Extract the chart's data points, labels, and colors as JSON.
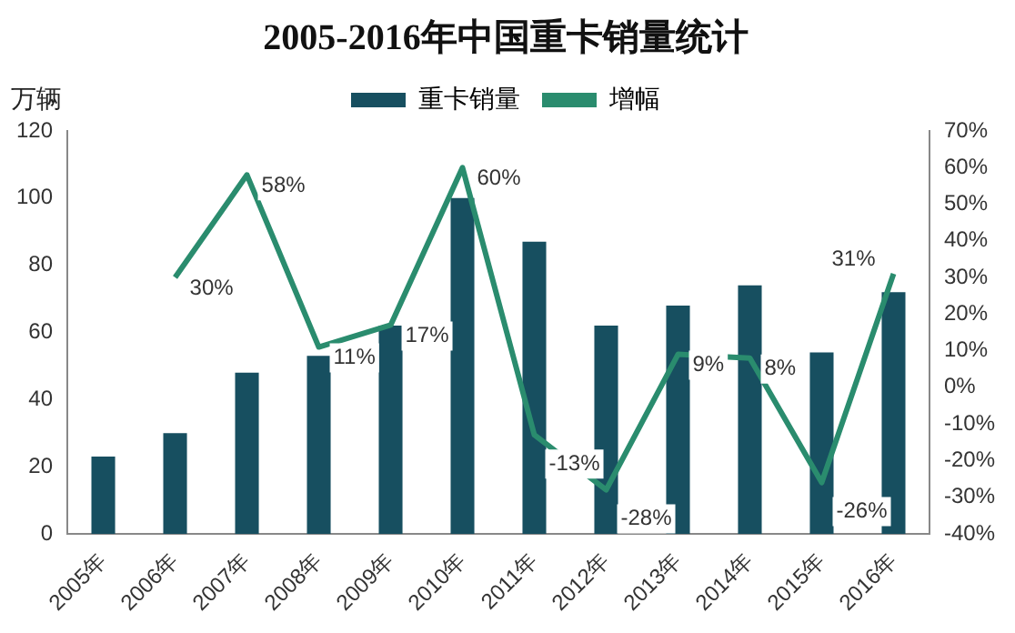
{
  "chart_data": {
    "type": "bar",
    "title": "2005-2016年中国重卡销量统计",
    "ylabel": "万辆",
    "categories": [
      "2005年",
      "2006年",
      "2007年",
      "2008年",
      "2009年",
      "2010年",
      "2011年",
      "2012年",
      "2013年",
      "2014年",
      "2015年",
      "2016年"
    ],
    "series": [
      {
        "name": "重卡销量",
        "color": "#174f60",
        "values": [
          23,
          30,
          48,
          53,
          62,
          100,
          87,
          62,
          68,
          74,
          54,
          72
        ]
      },
      {
        "type": "line",
        "name": "增幅",
        "color": "#2a8c6e",
        "axis": "y2",
        "values": [
          null,
          30,
          58,
          11,
          17,
          60,
          -13,
          -28,
          9,
          8,
          -26,
          31
        ],
        "value_labels": [
          null,
          "30%",
          "58%",
          "11%",
          "17%",
          "60%",
          "-13%",
          "-28%",
          "9%",
          "8%",
          "-26%",
          "31%"
        ]
      }
    ],
    "ylim": [
      0,
      120
    ],
    "yticks": [
      0,
      20,
      40,
      60,
      80,
      100,
      120
    ],
    "y2lim": [
      -40,
      70
    ],
    "y2ticks": [
      {
        "value": -40,
        "label": "-40%"
      },
      {
        "value": -30,
        "label": "-30%"
      },
      {
        "value": -20,
        "label": "-20%"
      },
      {
        "value": -10,
        "label": "-10%"
      },
      {
        "value": 0,
        "label": "0%"
      },
      {
        "value": 10,
        "label": "10%"
      },
      {
        "value": 20,
        "label": "20%"
      },
      {
        "value": 30,
        "label": "30%"
      },
      {
        "value": 40,
        "label": "40%"
      },
      {
        "value": 50,
        "label": "50%"
      },
      {
        "value": 60,
        "label": "60%"
      },
      {
        "value": 70,
        "label": "70%"
      }
    ],
    "grid": false,
    "legend": "top",
    "marker": "none"
  }
}
